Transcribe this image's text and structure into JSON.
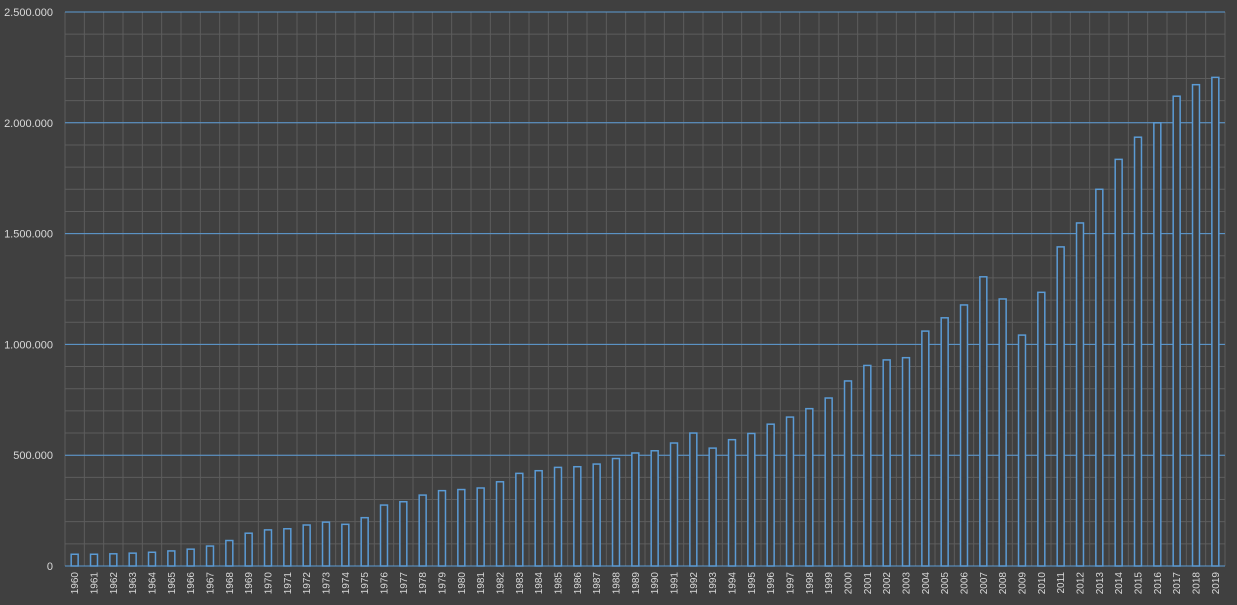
{
  "chart_data": {
    "type": "bar",
    "title": "",
    "xlabel": "",
    "ylabel": "",
    "ylim": [
      0,
      2500000
    ],
    "y_ticks": [
      0,
      500000,
      1000000,
      1500000,
      2000000,
      2500000
    ],
    "y_tick_labels": [
      "0",
      "500.000",
      "1.000.000",
      "1.500.000",
      "2.000.000",
      "2.500.000"
    ],
    "grid": "on",
    "legend": "none",
    "colors": {
      "background": "#404040",
      "bar_fill": "#3f3f3f",
      "bar_stroke": "#5b9bd5",
      "grid_major": "#5b9bd5",
      "grid_minor": "#5d5d5d",
      "text": "#d9d9d9"
    },
    "categories": [
      "1960",
      "1961",
      "1962",
      "1963",
      "1964",
      "1965",
      "1966",
      "1967",
      "1968",
      "1969",
      "1970",
      "1971",
      "1972",
      "1973",
      "1974",
      "1975",
      "1976",
      "1977",
      "1978",
      "1979",
      "1980",
      "1981",
      "1982",
      "1983",
      "1984",
      "1985",
      "1986",
      "1987",
      "1988",
      "1989",
      "1990",
      "1991",
      "1992",
      "1993",
      "1994",
      "1995",
      "1996",
      "1997",
      "1998",
      "1999",
      "2000",
      "2001",
      "2002",
      "2003",
      "2004",
      "2005",
      "2006",
      "2007",
      "2008",
      "2009",
      "2010",
      "2011",
      "2012",
      "2013",
      "2014",
      "2015",
      "2016",
      "2017",
      "2018",
      "2019"
    ],
    "values": [
      53000,
      53000,
      55000,
      58000,
      62000,
      68000,
      76000,
      90000,
      115000,
      148000,
      163000,
      168000,
      185000,
      198000,
      188000,
      218000,
      275000,
      290000,
      320000,
      340000,
      345000,
      352000,
      380000,
      418000,
      430000,
      445000,
      448000,
      460000,
      485000,
      510000,
      520000,
      555000,
      600000,
      532000,
      570000,
      598000,
      640000,
      672000,
      710000,
      758000,
      835000,
      905000,
      930000,
      940000,
      1060000,
      1120000,
      1178000,
      1305000,
      1205000,
      1042000,
      1235000,
      1440000,
      1548000,
      1700000,
      1835000,
      1935000,
      2000000,
      2120000,
      2172000,
      2205000
    ]
  }
}
